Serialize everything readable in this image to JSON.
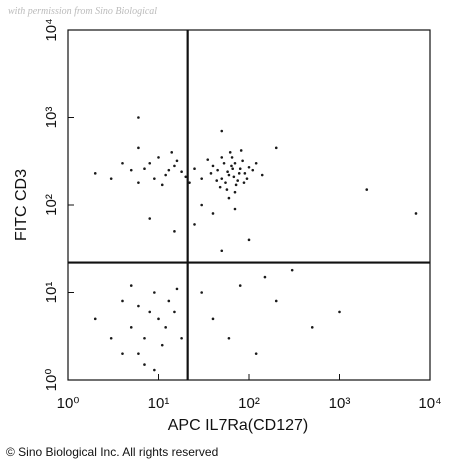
{
  "chart_data": {
    "type": "scatter",
    "watermark": "with permission from Sino Biological",
    "xlabel": "APC IL7Ra(CD127)",
    "ylabel": "FITC CD3",
    "footer": "© Sino Biological Inc. All rights reserved",
    "xscale": "log",
    "yscale": "log",
    "xlim": [
      1,
      10000
    ],
    "ylim": [
      1,
      10000
    ],
    "xticks": [
      {
        "value": 1,
        "label": "10⁰"
      },
      {
        "value": 10,
        "label": "10¹"
      },
      {
        "value": 100,
        "label": "10²"
      },
      {
        "value": 1000,
        "label": "10³"
      },
      {
        "value": 10000,
        "label": "10⁴"
      }
    ],
    "yticks": [
      {
        "value": 1,
        "label": "10⁰"
      },
      {
        "value": 10,
        "label": "10¹"
      },
      {
        "value": 100,
        "label": "10²"
      },
      {
        "value": 1000,
        "label": "10³"
      },
      {
        "value": 10000,
        "label": "10⁴"
      }
    ],
    "gate_x": 21,
    "gate_y": 22,
    "color": "#1a1a1a",
    "x": [
      45,
      60,
      70,
      55,
      80,
      65,
      50,
      90,
      75,
      40,
      58,
      68,
      85,
      100,
      48,
      62,
      72,
      95,
      38,
      53,
      66,
      78,
      110,
      44,
      57,
      88,
      70,
      35,
      60,
      120,
      140,
      30,
      82,
      50,
      64,
      5,
      8,
      12,
      3,
      15,
      10,
      6,
      18,
      4,
      9,
      14,
      7,
      2,
      11,
      16,
      13,
      20,
      6,
      25,
      22,
      25,
      40,
      70,
      15,
      100,
      30,
      50,
      8,
      5,
      7,
      8,
      10,
      6,
      4,
      9,
      12,
      3,
      15,
      7,
      11,
      5,
      18,
      2,
      6,
      13,
      9,
      4,
      16,
      40,
      80,
      200,
      500,
      60,
      150,
      30,
      300,
      1000,
      120,
      6,
      50,
      2000,
      7000,
      200
    ],
    "values": [
      250,
      220,
      300,
      180,
      260,
      350,
      200,
      230,
      190,
      280,
      240,
      210,
      320,
      270,
      160,
      400,
      170,
      200,
      230,
      300,
      260,
      230,
      250,
      190,
      150,
      180,
      140,
      330,
      120,
      300,
      220,
      200,
      420,
      350,
      280,
      250,
      300,
      220,
      200,
      280,
      350,
      180,
      240,
      300,
      200,
      400,
      260,
      230,
      170,
      320,
      250,
      210,
      450,
      260,
      180,
      60,
      80,
      90,
      50,
      40,
      100,
      30,
      70,
      4,
      3,
      6,
      5,
      2,
      8,
      10,
      4,
      3,
      6,
      1.5,
      2.5,
      12,
      3,
      5,
      7,
      8,
      1.3,
      2,
      11,
      5,
      12,
      8,
      4,
      3,
      15,
      10,
      18,
      6,
      2,
      1000,
      700,
      150,
      80,
      450
    ]
  }
}
